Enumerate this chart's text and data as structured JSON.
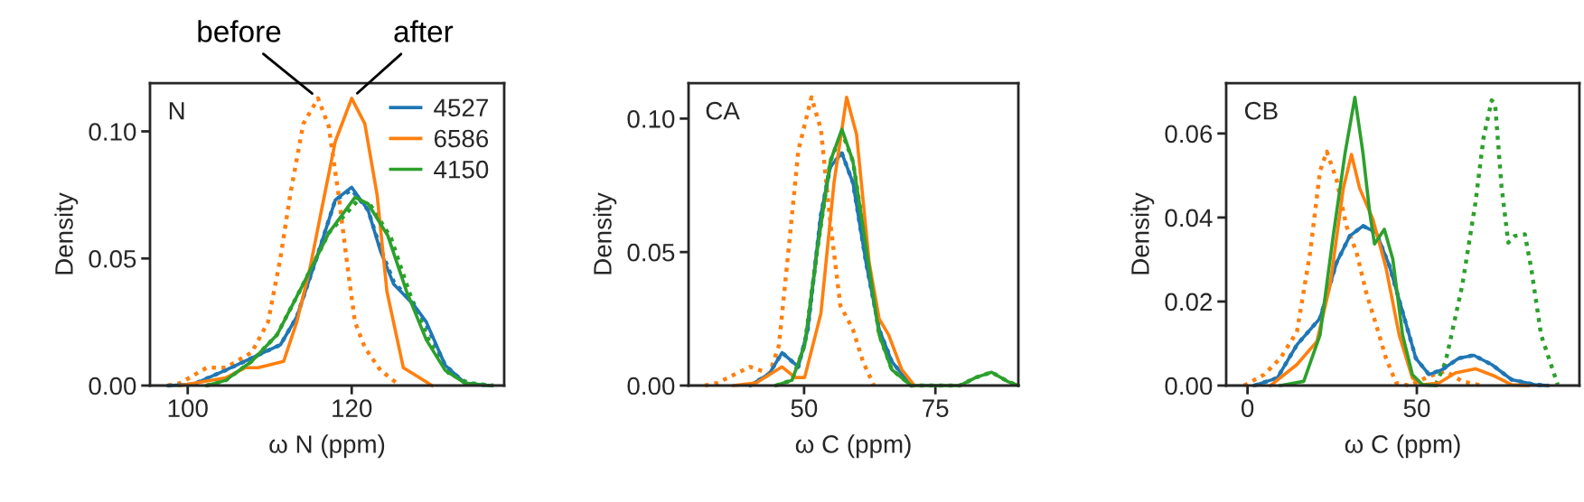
{
  "chart_data": [
    {
      "type": "line",
      "title": "N",
      "xlabel": "ω N (ppm)",
      "ylabel": "Density",
      "xlim": [
        95.4,
        138.6
      ],
      "ylim": [
        0,
        0.119
      ],
      "xticks": [
        100,
        120
      ],
      "yticks": [
        {
          "value": 0,
          "label": "0.00"
        },
        {
          "value": 0.05,
          "label": "0.05"
        },
        {
          "value": 0.1,
          "label": "0.10"
        }
      ],
      "grid": false,
      "legend": "top right",
      "annotations": [
        {
          "text": "before",
          "x": 115.9,
          "y": 0.113
        },
        {
          "text": "after",
          "x": 120,
          "y": 0.113
        }
      ],
      "series": [
        {
          "color": "#1f77b4",
          "line_style": "dotted",
          "x": [
            97.6,
            100.7,
            104.6,
            108.6,
            111.3,
            113.3,
            115.7,
            118,
            120,
            122,
            123.5,
            125.1,
            127.5,
            129.1,
            131.4,
            133.8,
            136.9
          ],
          "values": [
            0,
            0.0005,
            0.006,
            0.012,
            0.016,
            0.027,
            0.05,
            0.073,
            0.077,
            0.069,
            0.054,
            0.041,
            0.032,
            0.024,
            0.008,
            0.001,
            0
          ]
        },
        {
          "color": "#ff7f0e",
          "line_style": "dotted",
          "x": [
            97.6,
            99.1,
            102.3,
            104.6,
            107.8,
            109.8,
            111.3,
            112.5,
            114.1,
            115.9,
            117.2,
            118.4,
            119.6,
            120.4,
            121.6,
            123.5,
            125.9
          ],
          "values": [
            0,
            0.001,
            0.007,
            0.007,
            0.013,
            0.025,
            0.05,
            0.075,
            0.103,
            0.113,
            0.102,
            0.075,
            0.044,
            0.025,
            0.015,
            0.006,
            0
          ]
        },
        {
          "color": "#2ca02c",
          "line_style": "dotted",
          "x": [
            102.3,
            104.6,
            107.8,
            110.9,
            114.1,
            117.2,
            120.8,
            122.4,
            124.8,
            127.1,
            129.5,
            131.8,
            134.2,
            137.3
          ],
          "values": [
            0,
            0.002,
            0.0095,
            0.02,
            0.04,
            0.06,
            0.073,
            0.0705,
            0.058,
            0.036,
            0.017,
            0.005,
            0.001,
            0
          ]
        },
        {
          "name": "4527",
          "color": "#1f77b4",
          "line_style": "solid",
          "x": [
            97.6,
            100.7,
            104.6,
            108.6,
            111.3,
            113.3,
            115.7,
            118,
            120,
            122,
            123.5,
            125.1,
            127.5,
            129.1,
            131.4,
            133.8,
            136.9
          ],
          "values": [
            0,
            0.0005,
            0.006,
            0.012,
            0.016,
            0.027,
            0.05,
            0.073,
            0.078,
            0.069,
            0.053,
            0.04,
            0.032,
            0.025,
            0.008,
            0.001,
            0
          ]
        },
        {
          "name": "6586",
          "color": "#ff7f0e",
          "line_style": "solid",
          "x": [
            99.1,
            104.6,
            107,
            108.6,
            111.7,
            113.3,
            114.9,
            116.5,
            118,
            120,
            121.6,
            123.1,
            124.3,
            126.3,
            128.3,
            129.8
          ],
          "values": [
            0,
            0.003,
            0.007,
            0.007,
            0.0095,
            0.025,
            0.046,
            0.072,
            0.096,
            0.113,
            0.103,
            0.075,
            0.037,
            0.007,
            0.003,
            0
          ]
        },
        {
          "name": "4150",
          "color": "#2ca02c",
          "line_style": "solid",
          "x": [
            102.3,
            104.6,
            107.8,
            110.9,
            114.1,
            117.2,
            120.4,
            122,
            124.4,
            126.7,
            129.1,
            131.4,
            133.8,
            136.9
          ],
          "values": [
            0,
            0.002,
            0.0095,
            0.02,
            0.04,
            0.06,
            0.074,
            0.0715,
            0.059,
            0.037,
            0.018,
            0.006,
            0.001,
            0
          ]
        }
      ]
    },
    {
      "type": "line",
      "title": "CA",
      "xlabel": "ω C (ppm)",
      "ylabel": "Density",
      "xlim": [
        28,
        90.8
      ],
      "ylim": [
        0,
        0.1133
      ],
      "xticks": [
        50,
        75
      ],
      "yticks": [
        {
          "value": 0,
          "label": "0.00"
        },
        {
          "value": 0.05,
          "label": "0.05"
        },
        {
          "value": 0.1,
          "label": "0.10"
        }
      ],
      "grid": false,
      "series": [
        {
          "color": "#1f77b4",
          "line_style": "dotted",
          "x": [
            39.7,
            43.4,
            45.8,
            48.9,
            50.7,
            53.2,
            55,
            57.2,
            59.3,
            61.8,
            64.3,
            66.7,
            70.4
          ],
          "values": [
            0,
            0.0045,
            0.0123,
            0.007,
            0.021,
            0.064,
            0.082,
            0.087,
            0.076,
            0.046,
            0.021,
            0.009,
            0
          ]
        },
        {
          "color": "#ff7f0e",
          "line_style": "dotted",
          "x": [
            31.1,
            33.5,
            39.7,
            43.4,
            45.2,
            47.1,
            48.9,
            51.4,
            53.2,
            55,
            56.9,
            59.3,
            61.2,
            63.3
          ],
          "values": [
            0,
            0.001,
            0.007,
            0.0045,
            0.015,
            0.052,
            0.088,
            0.108,
            0.096,
            0.061,
            0.03,
            0.021,
            0.009,
            0
          ]
        },
        {
          "color": "#2ca02c",
          "line_style": "dotted",
          "x": [
            44.6,
            47.7,
            50.1,
            52.6,
            55,
            57.2,
            59.3,
            61.8,
            64.3,
            66.7,
            70.4,
            79.6,
            82.7,
            85.7,
            88.8,
            90.8
          ],
          "values": [
            0,
            0.002,
            0.015,
            0.052,
            0.084,
            0.095,
            0.084,
            0.052,
            0.019,
            0.006,
            0,
            0,
            0.003,
            0.005,
            0.0015,
            0
          ]
        },
        {
          "name": "4527",
          "color": "#1f77b4",
          "line_style": "solid",
          "x": [
            39.7,
            43.4,
            45.8,
            48.9,
            50.7,
            53.2,
            55,
            57.2,
            59.3,
            61.8,
            64.3,
            66.7,
            70.4
          ],
          "values": [
            0,
            0.0045,
            0.0123,
            0.007,
            0.021,
            0.064,
            0.082,
            0.087,
            0.076,
            0.046,
            0.021,
            0.009,
            0
          ]
        },
        {
          "name": "6586",
          "color": "#ff7f0e",
          "line_style": "solid",
          "x": [
            36.6,
            40.9,
            45.8,
            48.3,
            50.1,
            53.2,
            55.7,
            58.1,
            60,
            62.4,
            64.3,
            66.1,
            68.6,
            71
          ],
          "values": [
            0,
            0.001,
            0.007,
            0.003,
            0.003,
            0.027,
            0.076,
            0.108,
            0.094,
            0.046,
            0.025,
            0.019,
            0.006,
            0
          ]
        },
        {
          "name": "4150",
          "color": "#2ca02c",
          "line_style": "solid",
          "x": [
            44.6,
            47.7,
            50.1,
            52.6,
            55,
            57.2,
            59.3,
            61.8,
            64.3,
            66.7,
            70.4,
            79.6,
            82.7,
            85.7,
            88.8,
            90.8
          ],
          "values": [
            0,
            0.002,
            0.015,
            0.052,
            0.084,
            0.096,
            0.084,
            0.052,
            0.019,
            0.006,
            0,
            0,
            0.003,
            0.005,
            0.0015,
            0
          ]
        }
      ]
    },
    {
      "type": "line",
      "title": "CB",
      "xlabel": "ω C (ppm)",
      "ylabel": "Density",
      "xlim": [
        -6.3,
        98
      ],
      "ylim": [
        0,
        0.072
      ],
      "xticks": [
        0,
        50
      ],
      "yticks": [
        {
          "value": 0,
          "label": "0.00"
        },
        {
          "value": 0.02,
          "label": "0.02"
        },
        {
          "value": 0.04,
          "label": "0.04"
        },
        {
          "value": 0.06,
          "label": "0.06"
        }
      ],
      "grid": false,
      "series": [
        {
          "color": "#1f77b4",
          "line_style": "dotted",
          "x": [
            2,
            8.8,
            14.6,
            21.4,
            26.3,
            30.2,
            34.1,
            38,
            41.9,
            45.8,
            49.7,
            53.6,
            57.5,
            62.4,
            66.8,
            72.1,
            78,
            84.8,
            88.7
          ],
          "values": [
            0,
            0.0018,
            0.0097,
            0.016,
            0.0293,
            0.0356,
            0.038,
            0.0364,
            0.0285,
            0.0175,
            0.0065,
            0.0026,
            0.0038,
            0.0065,
            0.0072,
            0.005,
            0.0014,
            0.0002,
            0
          ]
        },
        {
          "color": "#ff7f0e",
          "line_style": "dotted",
          "x": [
            -1,
            4.9,
            9.7,
            14.6,
            18.5,
            21.4,
            23.4,
            26.3,
            29.2,
            32.2,
            35.1,
            38,
            40.9,
            43.9,
            47.8,
            53.6,
            58.5,
            63.4,
            69.2
          ],
          "values": [
            0,
            0.0026,
            0.0065,
            0.0128,
            0.0317,
            0.051,
            0.0557,
            0.049,
            0.038,
            0.0317,
            0.022,
            0.0144,
            0.0065,
            0.0006,
            0,
            0.0022,
            0.0034,
            0.001,
            0
          ]
        },
        {
          "color": "#2ca02c",
          "line_style": "dotted",
          "x": [
            55.6,
            58.5,
            63.4,
            67.3,
            69.7,
            72.1,
            73.1,
            75,
            77,
            78.9,
            81.9,
            83.8,
            86.7,
            91.6
          ],
          "values": [
            0.0002,
            0.0057,
            0.0238,
            0.0435,
            0.059,
            0.0679,
            0.067,
            0.0474,
            0.034,
            0.0356,
            0.036,
            0.0278,
            0.012,
            0.0002
          ]
        },
        {
          "name": "4527",
          "color": "#1f77b4",
          "line_style": "solid",
          "x": [
            2,
            8.8,
            14.6,
            21.4,
            26.3,
            30.2,
            34.1,
            38,
            41.9,
            45.8,
            49.7,
            53.6,
            57.5,
            62.4,
            66.8,
            72.1,
            78,
            84.8,
            88.7
          ],
          "values": [
            0,
            0.0018,
            0.0097,
            0.016,
            0.0293,
            0.0356,
            0.038,
            0.0364,
            0.0285,
            0.0175,
            0.0065,
            0.0026,
            0.0038,
            0.0065,
            0.0072,
            0.005,
            0.0014,
            0.0002,
            0
          ]
        },
        {
          "name": "6586",
          "color": "#ff7f0e",
          "line_style": "solid",
          "x": [
            6.8,
            14.6,
            20.5,
            24.4,
            28.3,
            30.7,
            33.1,
            37,
            40.9,
            44.8,
            48.7,
            51.7,
            56.5,
            61.4,
            67.3,
            73.1,
            78,
            82.8
          ],
          "values": [
            0,
            0.005,
            0.0105,
            0.024,
            0.047,
            0.055,
            0.047,
            0.0396,
            0.028,
            0.012,
            0.0018,
            0.0002,
            0.0006,
            0.003,
            0.004,
            0.0022,
            0.0002,
            0
          ]
        },
        {
          "name": "4150",
          "color": "#2ca02c",
          "line_style": "solid",
          "x": [
            9.7,
            16.6,
            21.4,
            25.3,
            28.8,
            31.7,
            34.1,
            36.1,
            37.5,
            40.4,
            42.9,
            45.8,
            48.7,
            51.7,
            55.6
          ],
          "values": [
            0,
            0.001,
            0.012,
            0.0356,
            0.0553,
            0.0686,
            0.0553,
            0.0411,
            0.0337,
            0.0372,
            0.0301,
            0.012,
            0.0026,
            0.0002,
            0
          ]
        }
      ]
    }
  ]
}
